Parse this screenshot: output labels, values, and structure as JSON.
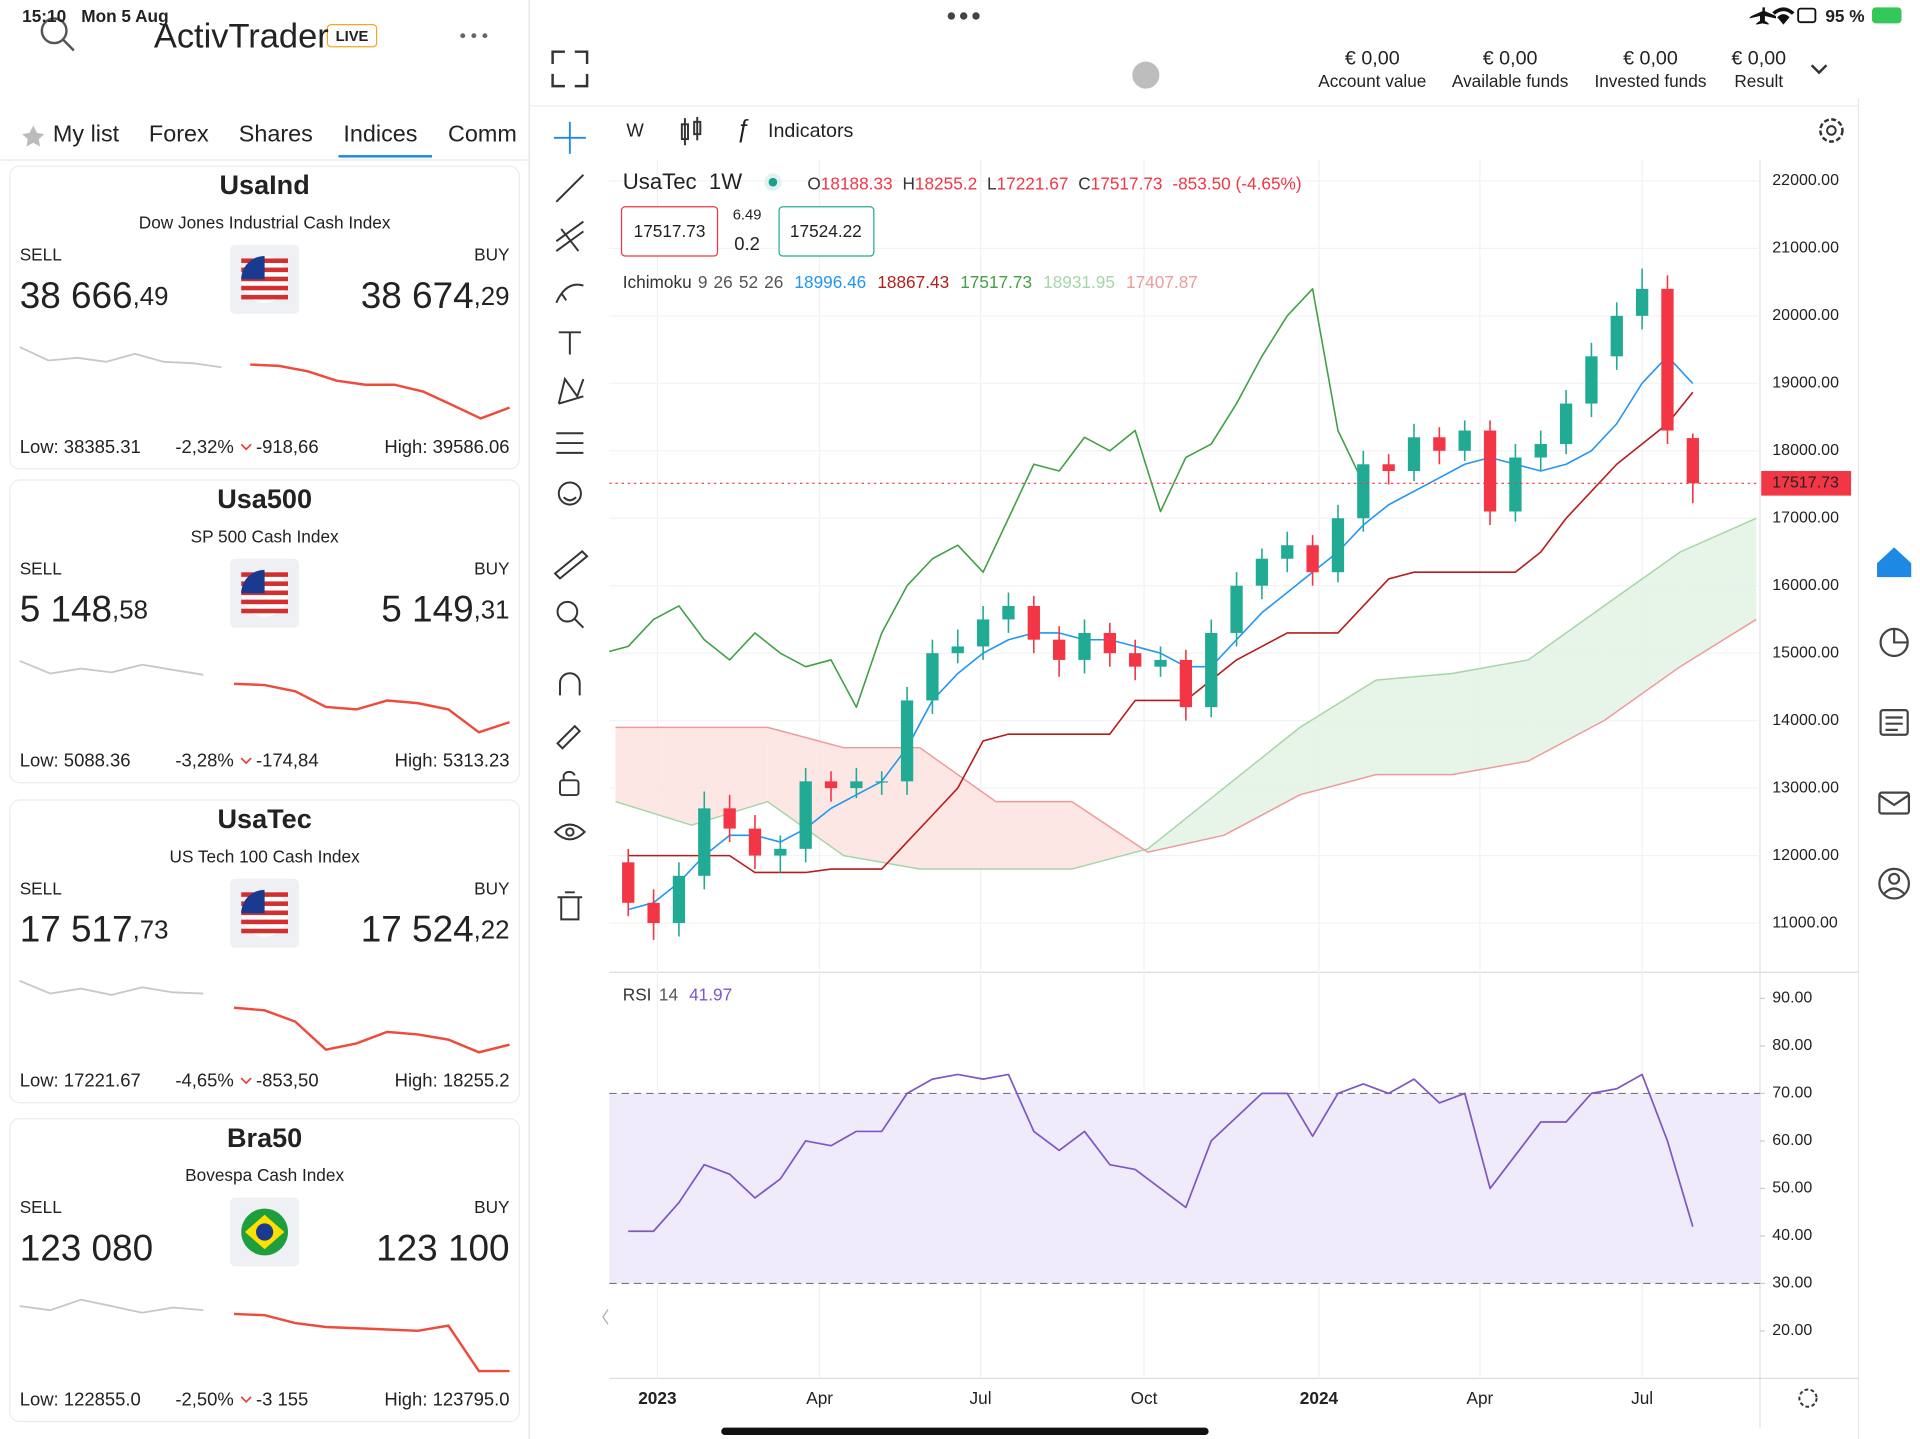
{
  "status_bar": {
    "time": "15:10",
    "date": "Mon 5 Aug",
    "battery": "95 %"
  },
  "app": {
    "brand": "ActivTrader",
    "badge": "LIVE"
  },
  "tabs": [
    "My list",
    "Forex",
    "Shares",
    "Indices",
    "Comm"
  ],
  "active_tab": 3,
  "spark_colors": [
    "#c8c8c8",
    "#ef4b3c"
  ],
  "instruments": [
    {
      "symbol": "UsaInd",
      "name": "Dow Jones Industrial Cash Index",
      "sell_label": "SELL",
      "buy_label": "BUY",
      "sell_main": "38 666",
      "sell_decimals": ",49",
      "buy_main": "38 674",
      "buy_decimals": ",29",
      "low": "Low: 38385.31",
      "change_pct": "-2,32%",
      "change": "-918,66",
      "high": "High: 39586.06",
      "spark_previous": [
        39586,
        39360,
        39405,
        39337,
        39473,
        39337,
        39314,
        39246
      ],
      "spark_today": [
        39292,
        39269,
        39178,
        39020,
        38952,
        38952,
        38839,
        38612,
        38385,
        38567
      ]
    },
    {
      "symbol": "Usa500",
      "name": "SP 500 Cash Index",
      "sell_label": "SELL",
      "buy_label": "BUY",
      "sell_main": "5 148",
      "sell_decimals": ",58",
      "buy_main": "5 149",
      "buy_decimals": ",31",
      "low": "Low: 5088.36",
      "change_pct": "-3,28%",
      "change": "-174,84",
      "high": "High: 5313.23",
      "spark_previous": [
        5313,
        5273,
        5289,
        5277,
        5301,
        5285,
        5269
      ],
      "spark_today": [
        5241,
        5237,
        5217,
        5168,
        5160,
        5188,
        5180,
        5160,
        5088,
        5120
      ]
    },
    {
      "symbol": "UsaTec",
      "name": "US Tech 100 Cash Index",
      "sell_label": "SELL",
      "buy_label": "BUY",
      "sell_main": "17 517",
      "sell_decimals": ",73",
      "buy_main": "17 524",
      "buy_decimals": ",22",
      "low": "Low: 17221.67",
      "change_pct": "-4,65%",
      "change": "-853,50",
      "high": "High: 18255.2",
      "spark_previous": [
        18255,
        18071,
        18145,
        18052,
        18163,
        18089,
        18071
      ],
      "spark_today": [
        17866,
        17829,
        17665,
        17259,
        17351,
        17517,
        17480,
        17406,
        17222,
        17333
      ]
    },
    {
      "symbol": "Bra50",
      "name": "Bovespa Cash Index",
      "sell_label": "SELL",
      "buy_label": "BUY",
      "sell_main": "123 080",
      "sell_decimals": "",
      "buy_main": "123 100",
      "buy_decimals": "",
      "low": "Low: 122855.0",
      "change_pct": "-2,50%",
      "change": "-3 155",
      "high": "High: 123795.0",
      "spark_previous": [
        123710,
        123658,
        123795,
        123710,
        123624,
        123692,
        123658
      ],
      "spark_today": [
        123607,
        123590,
        123487,
        123436,
        123419,
        123402,
        123385,
        123453,
        122855,
        122855
      ]
    }
  ],
  "account": [
    {
      "amount": "€ 0,00",
      "label": "Account value"
    },
    {
      "amount": "€ 0,00",
      "label": "Available funds"
    },
    {
      "amount": "€ 0,00",
      "label": "Invested funds"
    },
    {
      "amount": "€ 0,00",
      "label": "Result"
    }
  ],
  "toolbar": {
    "interval": "W",
    "indicators": "Indicators"
  },
  "chart_data": [
    {
      "type": "candlestick",
      "symbol": "UsaTec",
      "interval": "1W",
      "ohlc_labels": [
        "O",
        "H",
        "L",
        "C"
      ],
      "change_text": "-853.50 (-4.65%)",
      "up_color": "#22ab94",
      "down_color": "#f23645",
      "quote": {
        "sell": 17517.73,
        "spread_top": 6.49,
        "spread_bottom": 0.2,
        "buy": 17524.22
      },
      "x": [
        1,
        3,
        5,
        7,
        9,
        11,
        13,
        15,
        17,
        19,
        21,
        23,
        25,
        27,
        29,
        31,
        33,
        35,
        37,
        39,
        41,
        43,
        45,
        47,
        49,
        51,
        53,
        55,
        57,
        59,
        61,
        63,
        65,
        67,
        69,
        71,
        73,
        75,
        77,
        79,
        81,
        83,
        85
      ],
      "open": [
        11900,
        11300,
        11000,
        11700,
        12700,
        12400,
        12000,
        12100,
        13100,
        13000,
        13100,
        13100,
        14300,
        15000,
        15100,
        15500,
        15700,
        15200,
        14900,
        15300,
        15000,
        14800,
        14900,
        14200,
        15300,
        16000,
        16400,
        16600,
        16200,
        17000,
        17800,
        17700,
        18200,
        18000,
        18300,
        17100,
        17900,
        18100,
        18700,
        19400,
        20000,
        20400,
        18188.33
      ],
      "high": [
        12100,
        11500,
        11900,
        12950,
        12900,
        12600,
        12300,
        13300,
        13250,
        13300,
        13250,
        14500,
        15200,
        15350,
        15700,
        15900,
        15850,
        15400,
        15500,
        15450,
        15200,
        15100,
        15050,
        15500,
        16200,
        16550,
        16800,
        16750,
        17200,
        18000,
        17950,
        18400,
        18350,
        18450,
        18450,
        18100,
        18300,
        18900,
        19600,
        20200,
        20700,
        20600,
        18255.2
      ],
      "low": [
        11100,
        10750,
        10800,
        11500,
        12200,
        11800,
        11750,
        11900,
        12800,
        12850,
        12900,
        12900,
        14100,
        14850,
        14900,
        15300,
        15000,
        14650,
        14700,
        14800,
        14600,
        14650,
        14000,
        14050,
        15100,
        15800,
        16200,
        16000,
        16050,
        16800,
        17500,
        17550,
        17800,
        17850,
        16900,
        16950,
        17700,
        17950,
        18500,
        19200,
        19800,
        18100,
        17221.67
      ],
      "close": [
        11300,
        11000,
        11700,
        12700,
        12400,
        12000,
        12100,
        13100,
        13000,
        13100,
        13100,
        14300,
        15000,
        15100,
        15500,
        15700,
        15200,
        14900,
        15300,
        15000,
        14800,
        14900,
        14200,
        15300,
        16000,
        16400,
        16600,
        16200,
        17000,
        17800,
        17700,
        18200,
        18000,
        18300,
        17100,
        17900,
        18100,
        18700,
        19400,
        20000,
        20400,
        18300,
        17517.73
      ],
      "ichimoku": {
        "name": "Ichimoku",
        "params": [
          9,
          26,
          52,
          26
        ],
        "legend_values": [
          18996.46,
          18867.43,
          17517.73,
          18931.95,
          17407.87
        ],
        "colors": [
          "#2196f3",
          "#b71c1c",
          "#43a047",
          "#a5d6a7",
          "#ef9a9a"
        ],
        "cloud_colors": [
          "#e3f2e4",
          "#fde3e1"
        ],
        "tenkan": [
          11200,
          11300,
          11600,
          12000,
          12300,
          12300,
          12200,
          12400,
          12700,
          12900,
          13100,
          13600,
          14300,
          14700,
          15000,
          15200,
          15300,
          15300,
          15200,
          15200,
          15100,
          15000,
          14800,
          14800,
          15200,
          15600,
          15900,
          16200,
          16500,
          16900,
          17200,
          17400,
          17600,
          17800,
          17900,
          17800,
          17700,
          17800,
          18000,
          18400,
          19000,
          19400,
          18996.46
        ],
        "kijun": [
          12000,
          12000,
          12000,
          12000,
          12000,
          11750,
          11750,
          11750,
          11800,
          11800,
          11800,
          12200,
          12600,
          13000,
          13700,
          13800,
          13800,
          13800,
          13800,
          13800,
          14300,
          14300,
          14300,
          14600,
          14900,
          15100,
          15300,
          15300,
          15300,
          15700,
          16100,
          16200,
          16200,
          16200,
          16200,
          16200,
          16500,
          17000,
          17400,
          17800,
          18100,
          18400,
          18867.43
        ],
        "cloud_x": [
          0,
          6,
          12,
          18,
          24,
          30,
          36,
          42,
          48,
          54,
          60,
          66,
          72,
          78,
          84,
          90
        ],
        "span_a": [
          12800,
          12450,
          12800,
          12000,
          11800,
          11800,
          11800,
          12100,
          13000,
          13900,
          14600,
          14700,
          14900,
          15700,
          16500,
          17000
        ],
        "span_b": [
          13900,
          13900,
          13900,
          13600,
          13600,
          12800,
          12800,
          12050,
          12300,
          12900,
          13200,
          13200,
          13400,
          14000,
          14800,
          15500
        ]
      },
      "xlim": [
        -0.5,
        90.3
      ],
      "xticks": [
        {
          "value": 3.3,
          "label": "2023"
        },
        {
          "value": 16.1,
          "label": "Apr"
        },
        {
          "value": 28.8,
          "label": "Jul"
        },
        {
          "value": 41.7,
          "label": "Oct"
        },
        {
          "value": 55.5,
          "label": "2024"
        },
        {
          "value": 68.2,
          "label": "Apr"
        },
        {
          "value": 81.0,
          "label": "Jul"
        }
      ],
      "ylim": [
        10270,
        22310
      ],
      "yticks": [
        {
          "value": 11000,
          "label": "11000.00"
        },
        {
          "value": 12000,
          "label": "12000.00"
        },
        {
          "value": 13000,
          "label": "13000.00"
        },
        {
          "value": 14000,
          "label": "14000.00"
        },
        {
          "value": 15000,
          "label": "15000.00"
        },
        {
          "value": 16000,
          "label": "16000.00"
        },
        {
          "value": 17000,
          "label": "17000.00"
        },
        {
          "value": 18000,
          "label": "18000.00"
        },
        {
          "value": 19000,
          "label": "19000.00"
        },
        {
          "value": 20000,
          "label": "20000.00"
        },
        {
          "value": 21000,
          "label": "21000.00"
        },
        {
          "value": 22000,
          "label": "22000.00"
        }
      ]
    },
    {
      "type": "line",
      "title": "RSI",
      "period": 14,
      "value": 41.97,
      "color": "#7e57c2",
      "band_color": "#f0ebfb",
      "bands": [
        30,
        70
      ],
      "x": [
        1,
        3,
        5,
        7,
        9,
        11,
        13,
        15,
        17,
        19,
        21,
        23,
        25,
        27,
        29,
        31,
        33,
        35,
        37,
        39,
        41,
        43,
        45,
        47,
        49,
        51,
        53,
        55,
        57,
        59,
        61,
        63,
        65,
        67,
        69,
        71,
        73,
        75,
        77,
        79,
        81,
        83,
        85
      ],
      "values": [
        41,
        41,
        47,
        55,
        53,
        48,
        52,
        60,
        59,
        62,
        62,
        70,
        73,
        74,
        73,
        74,
        62,
        58,
        62,
        55,
        54,
        50,
        46,
        60,
        65,
        70,
        70,
        61,
        70,
        72,
        70,
        73,
        68,
        70,
        50,
        57,
        64,
        64,
        70,
        71,
        74,
        60,
        41.97
      ],
      "xlim": [
        -0.5,
        90.3
      ],
      "ylim": [
        10,
        95.5
      ],
      "yticks": [
        {
          "value": 20,
          "label": "20.00"
        },
        {
          "value": 30,
          "label": "30.00"
        },
        {
          "value": 40,
          "label": "40.00"
        },
        {
          "value": 50,
          "label": "50.00"
        },
        {
          "value": 60,
          "label": "60.00"
        },
        {
          "value": 70,
          "label": "70.00"
        },
        {
          "value": 80,
          "label": "80.00"
        },
        {
          "value": 90,
          "label": "90.00"
        }
      ]
    }
  ]
}
